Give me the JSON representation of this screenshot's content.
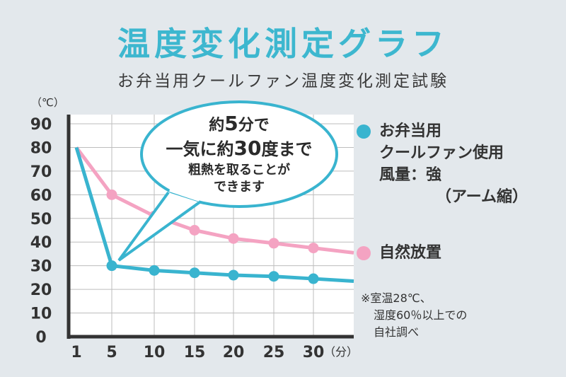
{
  "title": "温度変化測定グラフ",
  "subtitle": "お弁当用クールファン温度変化測定試験",
  "unit_y": "（℃）",
  "unit_x": "（分）",
  "callout": {
    "line1_pre": "約",
    "line1_num": "5",
    "line1_post": "分で",
    "line2_pre": "一気に約",
    "line2_num": "30",
    "line2_post": "度まで",
    "line3": "粗熱を取ることが",
    "line4": "できます"
  },
  "legend": {
    "fan": {
      "line1": "お弁当用",
      "line2": "クールファン使用",
      "line3": "風量：強",
      "line4": "（アーム縮）",
      "color": "#39b4cf"
    },
    "natural": {
      "label": "自然放置",
      "color": "#f4a3c2"
    }
  },
  "note": {
    "line1": "※室温28℃、",
    "line2": "湿度60％以上での",
    "line3": "自社調べ"
  },
  "chart_data": {
    "type": "line",
    "title": "温度変化測定グラフ",
    "subtitle": "お弁当用クールファン温度変化測定試験",
    "xlabel": "（分）",
    "ylabel": "（℃）",
    "x": [
      1,
      5,
      10,
      15,
      20,
      25,
      30
    ],
    "x_ticks": [
      "1",
      "5",
      "10",
      "15",
      "20",
      "25",
      "30"
    ],
    "y_ticks": [
      "0",
      "10",
      "20",
      "30",
      "40",
      "50",
      "60",
      "70",
      "80",
      "90"
    ],
    "ylim": [
      0,
      90
    ],
    "grid": true,
    "legend_placement": "right",
    "series": [
      {
        "name": "お弁当用クールファン使用 風量：強（アーム縮）",
        "values": [
          80,
          30,
          28,
          27,
          26,
          25.5,
          24.5
        ],
        "color": "#39b4cf"
      },
      {
        "name": "自然放置",
        "values": [
          80,
          60,
          51,
          45,
          41.5,
          39.5,
          37.5
        ],
        "color": "#f4a3c2"
      }
    ]
  }
}
